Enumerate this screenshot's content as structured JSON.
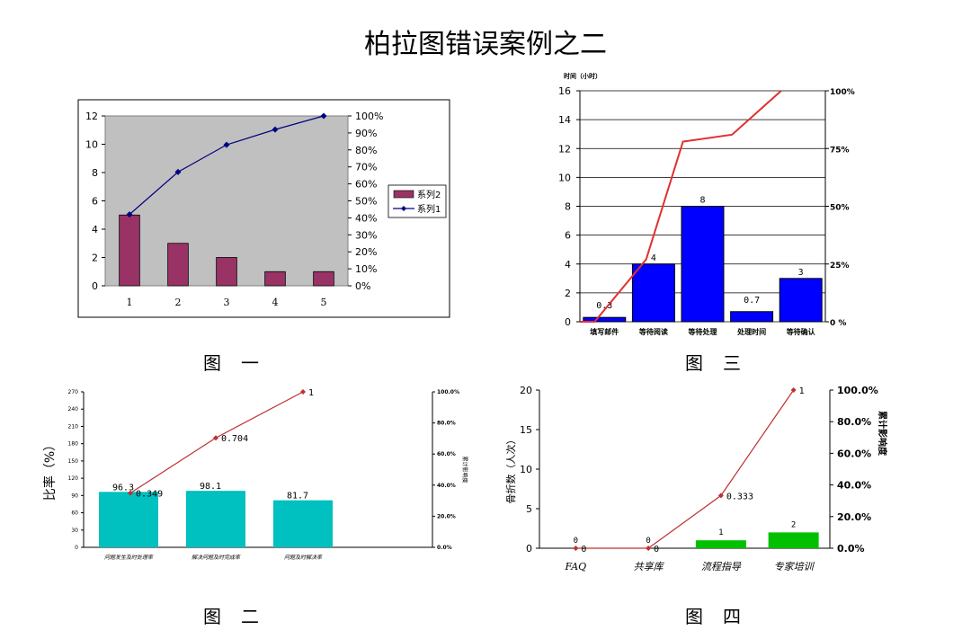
{
  "title": "柏拉图错误案例之二",
  "captions": {
    "fig1": {
      "label": "图",
      "num": "一"
    },
    "fig2": {
      "label": "图",
      "num": "二"
    },
    "fig3": {
      "label": "图",
      "num": "三"
    },
    "fig4": {
      "label": "图",
      "num": "四"
    }
  },
  "chart_data": [
    {
      "id": "fig1",
      "type": "bar",
      "title": "",
      "categories": [
        "1",
        "2",
        "3",
        "4",
        "5"
      ],
      "ylim": [
        0,
        12
      ],
      "yticks": [
        "0",
        "2",
        "4",
        "6",
        "8",
        "10",
        "12"
      ],
      "y2lim": [
        0,
        1
      ],
      "y2ticks": [
        "0%",
        "10%",
        "20%",
        "30%",
        "40%",
        "50%",
        "60%",
        "70%",
        "80%",
        "90%",
        "100%"
      ],
      "plot_bg": "#c0c0c0",
      "grid": false,
      "legend": "right",
      "series": [
        {
          "name": "系列2",
          "kind": "bar",
          "axis": "left",
          "values": [
            5,
            3,
            2,
            1,
            1
          ],
          "color": "#993366"
        },
        {
          "name": "系列1",
          "kind": "line",
          "axis": "right",
          "values": [
            0.42,
            0.67,
            0.83,
            0.92,
            1.0
          ],
          "color": "#000080"
        }
      ]
    },
    {
      "id": "fig2",
      "type": "bar",
      "title": "",
      "ylabel": "比率（%）",
      "y2label": "累计影响度",
      "categories": [
        "问题发生及时处理率",
        "解决问题及时完成率",
        "问题及时解决率"
      ],
      "ylim": [
        0,
        270
      ],
      "yticks": [
        "0",
        "30",
        "60",
        "90",
        "120",
        "150",
        "180",
        "210",
        "240",
        "270"
      ],
      "y2lim": [
        0,
        1
      ],
      "y2ticks": [
        "0.0%",
        "20.0%",
        "40.0%",
        "60.0%",
        "80.0%",
        "100.0%"
      ],
      "grid": false,
      "series": [
        {
          "kind": "bar",
          "axis": "left",
          "values": [
            96.3,
            98.1,
            81.7
          ],
          "labels": [
            "96.3",
            "98.1",
            "81.7"
          ],
          "color": "#00c0c0"
        },
        {
          "kind": "line",
          "axis": "right",
          "values": [
            0.349,
            0.704,
            1.0
          ],
          "labels": [
            "0.349",
            "0.704",
            "1"
          ],
          "color": "#c03030"
        }
      ]
    },
    {
      "id": "fig3",
      "type": "bar",
      "title": "",
      "ylabel": "时间（小时）",
      "categories": [
        "填写邮件",
        "等待阅读",
        "等待处理",
        "处理时间",
        "等待确认"
      ],
      "ylim": [
        0,
        16
      ],
      "yticks": [
        "0",
        "2",
        "4",
        "6",
        "8",
        "10",
        "12",
        "14",
        "16"
      ],
      "y2lim": [
        0,
        1
      ],
      "y2ticks": [
        "0 %",
        "25%",
        "50%",
        "75%",
        "100%"
      ],
      "grid": true,
      "series": [
        {
          "kind": "bar",
          "axis": "left",
          "values": [
            0.3,
            4,
            8,
            0.7,
            3
          ],
          "labels": [
            "0.3",
            "4",
            "8",
            "0.7",
            "3"
          ],
          "color": "#0000ff"
        },
        {
          "kind": "line",
          "axis": "right",
          "x": [
            0,
            0.3,
            1.35,
            2.1,
            3.1,
            4.1
          ],
          "values": [
            0.0,
            0.0,
            0.27,
            0.78,
            0.81,
            1.0
          ],
          "color": "#e03030"
        }
      ]
    },
    {
      "id": "fig4",
      "type": "bar",
      "title": "",
      "ylabel": "骨折数（人次）",
      "y2label": "累计影响度",
      "categories": [
        "FAQ",
        "共享库",
        "流程指导",
        "专家培训"
      ],
      "ylim": [
        0,
        20
      ],
      "yticks": [
        "0",
        "5",
        "10",
        "15",
        "20"
      ],
      "y2lim": [
        0,
        1
      ],
      "y2ticks": [
        "0.0%",
        "20.0%",
        "40.0%",
        "60.0%",
        "80.0%",
        "100.0%"
      ],
      "grid": false,
      "series": [
        {
          "kind": "bar",
          "axis": "left",
          "values": [
            0,
            0,
            1,
            2
          ],
          "labels": [
            "0",
            "0",
            "1",
            "2"
          ],
          "color": "#00c000"
        },
        {
          "kind": "line",
          "axis": "right",
          "values": [
            0,
            0,
            0.333,
            1.0
          ],
          "labels": [
            "0",
            "0",
            "0.333",
            "1"
          ],
          "color": "#c03030"
        }
      ]
    }
  ]
}
